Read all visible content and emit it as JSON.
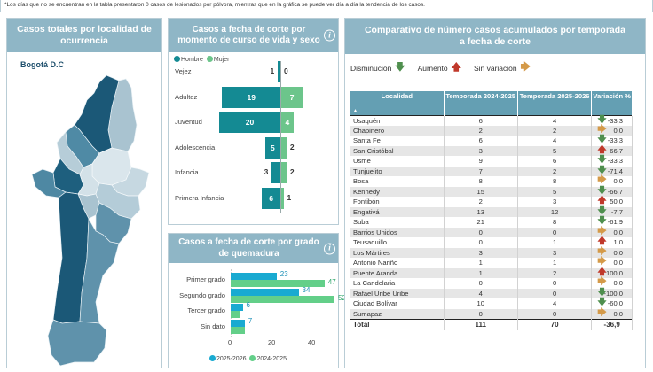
{
  "note": "*Los días que no se encuentran en la tabla presentaron 0 casos de lesionados por pólvora, mientras que en la gráfica se puede ver día a día la tendencia de los casos.",
  "map_panel": {
    "title": "Casos totales por localidad de ocurrencia",
    "region_label": "Bogotá D.C"
  },
  "life_panel": {
    "title": "Casos a fecha de corte por momento de curso de vida y sexo",
    "info_icon": "info-icon",
    "legend": [
      {
        "label": "Hombre",
        "color": "#148a93"
      },
      {
        "label": "Mujer",
        "color": "#6cc58b"
      }
    ]
  },
  "burn_panel": {
    "title": "Casos a fecha de corte por grado de quemadura",
    "info_icon": "info-icon",
    "legend": [
      {
        "label": "2025-2026",
        "color": "#19aad1"
      },
      {
        "label": "2024-2025",
        "color": "#63cf89"
      }
    ]
  },
  "table_panel": {
    "title": "Comparativo de número casos acumulados por temporada a fecha de corte",
    "legend": [
      {
        "label": "Disminución",
        "icon": "arrow-down"
      },
      {
        "label": "Aumento",
        "icon": "arrow-up"
      },
      {
        "label": "Sin variación",
        "icon": "arrow-right"
      }
    ],
    "columns": [
      "Localidad",
      "Temporada 2024-2025",
      "Temporada 2025-2026",
      "Variación %"
    ],
    "rows": [
      {
        "loc": "Usaquén",
        "t1": "6",
        "t2": "4",
        "var": "-33,3",
        "trend": "down"
      },
      {
        "loc": "Chapinero",
        "t1": "2",
        "t2": "2",
        "var": "0,0",
        "trend": "same"
      },
      {
        "loc": "Santa Fe",
        "t1": "6",
        "t2": "4",
        "var": "-33,3",
        "trend": "down"
      },
      {
        "loc": "San Cristóbal",
        "t1": "3",
        "t2": "5",
        "var": "66,7",
        "trend": "up"
      },
      {
        "loc": "Usme",
        "t1": "9",
        "t2": "6",
        "var": "-33,3",
        "trend": "down"
      },
      {
        "loc": "Tunjuelito",
        "t1": "7",
        "t2": "2",
        "var": "-71,4",
        "trend": "down"
      },
      {
        "loc": "Bosa",
        "t1": "8",
        "t2": "8",
        "var": "0,0",
        "trend": "same"
      },
      {
        "loc": "Kennedy",
        "t1": "15",
        "t2": "5",
        "var": "-66,7",
        "trend": "down"
      },
      {
        "loc": "Fontibón",
        "t1": "2",
        "t2": "3",
        "var": "50,0",
        "trend": "up"
      },
      {
        "loc": "Engativá",
        "t1": "13",
        "t2": "12",
        "var": "-7,7",
        "trend": "down"
      },
      {
        "loc": "Suba",
        "t1": "21",
        "t2": "8",
        "var": "-61,9",
        "trend": "down"
      },
      {
        "loc": "Barrios Unidos",
        "t1": "0",
        "t2": "0",
        "var": "0,0",
        "trend": "same"
      },
      {
        "loc": "Teusaquillo",
        "t1": "0",
        "t2": "1",
        "var": "1,0",
        "trend": "up"
      },
      {
        "loc": "Los Mártires",
        "t1": "3",
        "t2": "3",
        "var": "0,0",
        "trend": "same"
      },
      {
        "loc": "Antonio Nariño",
        "t1": "1",
        "t2": "1",
        "var": "0,0",
        "trend": "same"
      },
      {
        "loc": "Puente Aranda",
        "t1": "1",
        "t2": "2",
        "var": "100,0",
        "trend": "up"
      },
      {
        "loc": "La Candelaria",
        "t1": "0",
        "t2": "0",
        "var": "0,0",
        "trend": "same"
      },
      {
        "loc": "Rafael Uribe Uribe",
        "t1": "4",
        "t2": "0",
        "var": "-100,0",
        "trend": "down"
      },
      {
        "loc": "Ciudad Bolívar",
        "t1": "10",
        "t2": "4",
        "var": "-60,0",
        "trend": "down"
      },
      {
        "loc": "Sumapaz",
        "t1": "0",
        "t2": "0",
        "var": "0,0",
        "trend": "same"
      }
    ],
    "total": {
      "loc": "Total",
      "t1": "111",
      "t2": "70",
      "var": "-36,9"
    }
  },
  "colors": {
    "header": "#8fb6c6",
    "table_header": "#649fb3",
    "down": "#4f8f4e",
    "up": "#c0392b",
    "same": "#d49a49"
  },
  "chart_data": [
    {
      "type": "bar",
      "orientation": "horizontal-diverging",
      "title": "Casos a fecha de corte por momento de curso de vida y sexo",
      "categories": [
        "Vejez",
        "Adultez",
        "Juventud",
        "Adolescencia",
        "Infancia",
        "Primera Infancia"
      ],
      "series": [
        {
          "name": "Hombre",
          "values": [
            1,
            19,
            20,
            5,
            3,
            6
          ]
        },
        {
          "name": "Mujer",
          "values": [
            0,
            7,
            4,
            2,
            2,
            1
          ]
        }
      ],
      "legend": "top-left",
      "grid": false
    },
    {
      "type": "bar",
      "orientation": "horizontal",
      "title": "Casos a fecha de corte por grado de quemadura",
      "categories": [
        "Primer grado",
        "Segundo grado",
        "Tercer grado",
        "Sin dato"
      ],
      "series": [
        {
          "name": "2025-2026",
          "values": [
            23,
            34,
            6,
            7
          ]
        },
        {
          "name": "2024-2025",
          "values": [
            47,
            52,
            5,
            7
          ]
        }
      ],
      "xticks": [
        "0",
        "20",
        "40"
      ],
      "xlim": [
        0,
        55
      ],
      "legend": "bottom",
      "grid": true
    }
  ]
}
